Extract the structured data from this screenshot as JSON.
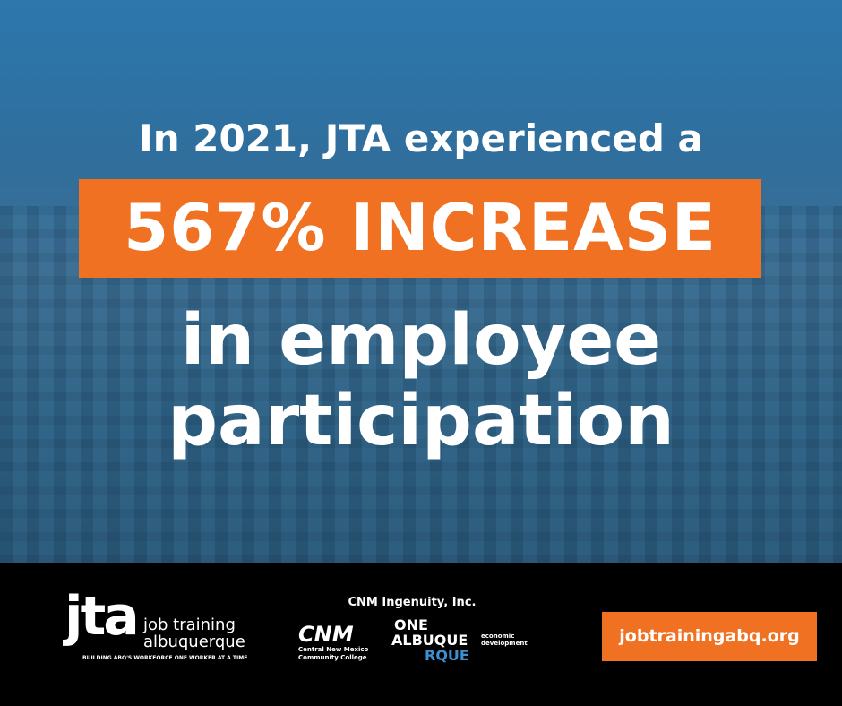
{
  "headline": {
    "intro": "In 2021, JTA experienced a",
    "highlight": "567% INCREASE",
    "lines": [
      "in employee",
      "participation"
    ]
  },
  "footer": {
    "jta": {
      "mark": "jta",
      "name_lines": [
        "job training",
        "albuquerque"
      ],
      "tagline": "BUILDING ABQ'S WORKFORCE ONE WORKER AT A TIME"
    },
    "partners": {
      "title": "CNM Ingenuity, Inc.",
      "cnm": {
        "mark": "CNM",
        "lines": [
          "Central New Mexico",
          "Community College"
        ]
      },
      "one_albuquerque": {
        "lines": [
          "ONE",
          "ALBUQUE",
          "RQUE"
        ],
        "sub_lines": [
          "economic",
          "development"
        ]
      }
    },
    "url": "jobtrainingabq.org"
  }
}
